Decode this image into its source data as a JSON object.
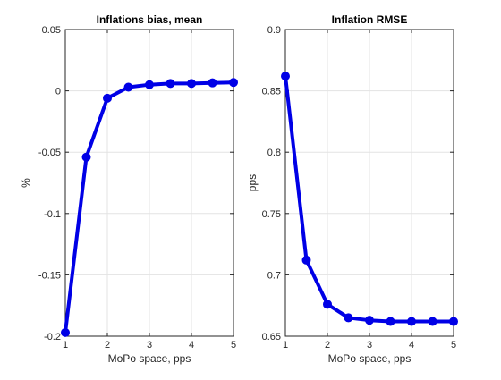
{
  "chart_data": [
    {
      "type": "line",
      "title": "Inflations bias, mean",
      "xlabel": "MoPo space, pps",
      "ylabel": "%",
      "xlim": [
        1,
        5
      ],
      "ylim": [
        -0.2,
        0.05
      ],
      "xticks": [
        1,
        2,
        3,
        4,
        5
      ],
      "xtick_labels": [
        "1",
        "2",
        "3",
        "4",
        "5"
      ],
      "yticks": [
        0.05,
        0,
        -0.05,
        -0.1,
        -0.15,
        -0.2
      ],
      "ytick_labels": [
        "0.05",
        "0",
        "-0.05",
        "-0.1",
        "-0.15",
        "-0.2"
      ],
      "grid": true,
      "legend": "none",
      "series": [
        {
          "color": "#0000e6",
          "marker": "circle",
          "x": [
            1,
            1.5,
            2,
            2.5,
            3,
            3.5,
            4,
            4.5,
            5
          ],
          "y": [
            -0.197,
            -0.054,
            -0.006,
            0.003,
            0.005,
            0.006,
            0.006,
            0.0065,
            0.0068
          ]
        }
      ]
    },
    {
      "type": "line",
      "title": "Inflation RMSE",
      "xlabel": "MoPo space, pps",
      "ylabel": "pps",
      "xlim": [
        1,
        5
      ],
      "ylim": [
        0.65,
        0.9
      ],
      "xticks": [
        1,
        2,
        3,
        4,
        5
      ],
      "xtick_labels": [
        "1",
        "2",
        "3",
        "4",
        "5"
      ],
      "yticks": [
        0.9,
        0.85,
        0.8,
        0.75,
        0.7,
        0.65
      ],
      "ytick_labels": [
        "0.9",
        "0.85",
        "0.8",
        "0.75",
        "0.7",
        "0.65"
      ],
      "grid": true,
      "legend": "none",
      "series": [
        {
          "color": "#0000e6",
          "marker": "circle",
          "x": [
            1,
            1.5,
            2,
            2.5,
            3,
            3.5,
            4,
            4.5,
            5
          ],
          "y": [
            0.862,
            0.712,
            0.676,
            0.665,
            0.663,
            0.662,
            0.662,
            0.662,
            0.662
          ]
        }
      ]
    }
  ]
}
